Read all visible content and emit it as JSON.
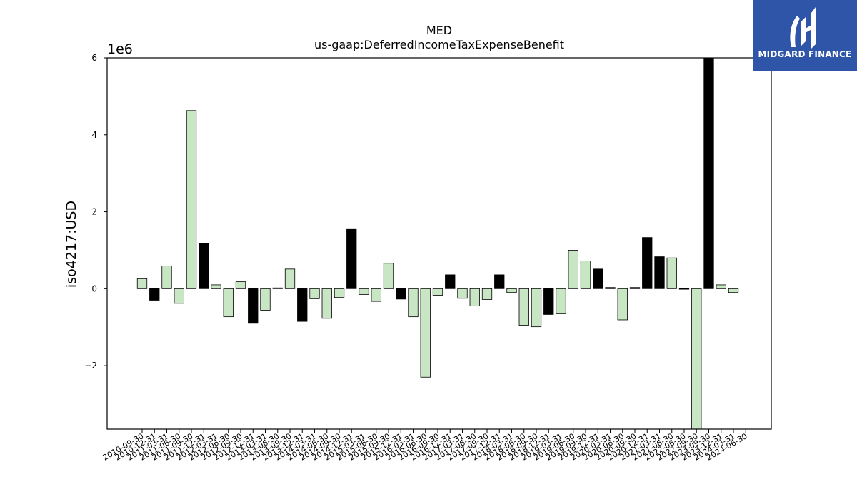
{
  "chart_data": {
    "type": "bar",
    "title": "MED",
    "subtitle": "us-gaap:DeferredIncomeTaxExpenseBenefit",
    "ylabel": "iso4217:USD",
    "y_scale_label": "1e6",
    "ylim": [
      -3.65,
      6.0
    ],
    "yticks": [
      -2,
      0,
      2,
      4,
      6
    ],
    "ytick_labels": [
      "−2",
      "0",
      "2",
      "4",
      "6"
    ],
    "grid": false,
    "legend": "none",
    "colors": {
      "light": "#c9e6c4",
      "dark": "#000000",
      "edge": "#000000"
    },
    "categories": [
      "2010-09-30",
      "2010-12-31",
      "2011-03-31",
      "2011-06-30",
      "2011-09-30",
      "2011-12-31",
      "2012-03-31",
      "2012-06-30",
      "2012-09-30",
      "2012-12-31",
      "2013-03-31",
      "2013-06-30",
      "2013-09-30",
      "2013-12-31",
      "2014-03-31",
      "2014-06-30",
      "2014-09-30",
      "2014-12-31",
      "2015-03-31",
      "2015-06-30",
      "2015-09-30",
      "2015-12-31",
      "2016-03-31",
      "2016-06-30",
      "2016-09-30",
      "2016-12-31",
      "2017-03-31",
      "2017-06-30",
      "2017-09-30",
      "2017-12-31",
      "2018-03-31",
      "2018-06-30",
      "2018-09-30",
      "2018-12-31",
      "2019-03-31",
      "2019-06-30",
      "2019-09-30",
      "2019-12-31",
      "2020-03-31",
      "2020-06-30",
      "2020-09-30",
      "2020-12-31",
      "2021-03-31",
      "2021-06-30",
      "2022-06-30",
      "2022-09-30",
      "2023-09-30",
      "2023-12-31",
      "2024-03-31",
      "2024-06-30"
    ],
    "values": [
      0.26,
      -0.3,
      0.59,
      -0.38,
      4.63,
      1.18,
      0.1,
      -0.73,
      0.18,
      -0.9,
      -0.56,
      0.02,
      0.51,
      -0.85,
      -0.26,
      -0.77,
      -0.23,
      1.56,
      -0.15,
      -0.33,
      0.66,
      -0.27,
      -0.73,
      -2.3,
      -0.17,
      0.36,
      -0.25,
      -0.45,
      -0.28,
      0.36,
      -0.1,
      -0.95,
      -0.99,
      -0.67,
      -0.65,
      1.0,
      0.72,
      0.51,
      0.03,
      -0.81,
      0.03,
      1.33,
      0.83,
      0.8,
      -0.01,
      -3.65,
      6.0,
      0.1,
      -0.1,
      null
    ],
    "bar_shade": [
      "light",
      "dark",
      "light",
      "light",
      "light",
      "dark",
      "light",
      "light",
      "light",
      "dark",
      "light",
      "dark",
      "light",
      "dark",
      "light",
      "light",
      "light",
      "dark",
      "light",
      "light",
      "light",
      "dark",
      "light",
      "light",
      "light",
      "dark",
      "light",
      "light",
      "light",
      "dark",
      "light",
      "light",
      "light",
      "dark",
      "light",
      "light",
      "light",
      "dark",
      "light",
      "light",
      "light",
      "dark",
      "dark",
      "light",
      "dark",
      "light",
      "dark",
      "light",
      "light",
      "light"
    ]
  },
  "logo": {
    "text": "MIDGARD FINANCE",
    "icon": "midgard-logo-icon"
  }
}
